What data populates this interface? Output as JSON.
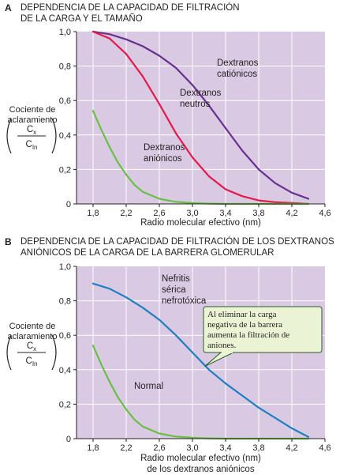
{
  "chart_data": [
    {
      "type": "line",
      "panel_letter": "A",
      "title_lines": [
        "DEPENDENCIA DE LA CAPACIDAD DE FILTRACIÓN",
        "DE LA CARGA Y EL TAMAÑO"
      ],
      "xlabel": "Radio molecular efectivo (nm)",
      "ylabel_lines": [
        "Cociente de",
        "aclaramiento"
      ],
      "ylabel_fraction": {
        "num_main": "C",
        "num_sub": "x",
        "den_main": "C",
        "den_sub": "In"
      },
      "xlim": [
        1.6,
        4.6
      ],
      "ylim": [
        0,
        1.0
      ],
      "x_ticks": [
        "1,8",
        "2,2",
        "2,6",
        "3,0",
        "3,4",
        "3,8",
        "4,2",
        "4,6"
      ],
      "y_ticks": [
        "0",
        "0,2",
        "0,4",
        "0,6",
        "0,8",
        "1,0"
      ],
      "grid": true,
      "background": "#d9c9e3",
      "series": [
        {
          "name": "Dextranos catiónicos",
          "label_lines": [
            "Dextranos",
            "catiónicos"
          ],
          "color": "#6a2f91",
          "x": [
            1.8,
            2.0,
            2.2,
            2.4,
            2.6,
            2.8,
            3.0,
            3.2,
            3.4,
            3.6,
            3.8,
            4.0,
            4.2,
            4.4
          ],
          "y": [
            1.0,
            0.985,
            0.955,
            0.915,
            0.86,
            0.79,
            0.69,
            0.57,
            0.44,
            0.31,
            0.2,
            0.12,
            0.065,
            0.03
          ]
        },
        {
          "name": "Dextranos neutros",
          "label_lines": [
            "Dextranos",
            "neutros"
          ],
          "color": "#e5194a",
          "x": [
            1.8,
            2.0,
            2.2,
            2.4,
            2.6,
            2.8,
            3.0,
            3.2,
            3.4,
            3.6,
            3.8,
            4.0,
            4.2,
            4.4
          ],
          "y": [
            1.0,
            0.96,
            0.87,
            0.74,
            0.58,
            0.41,
            0.27,
            0.16,
            0.085,
            0.045,
            0.02,
            0.01,
            0.005,
            0.0
          ]
        },
        {
          "name": "Dextranos aniónicos",
          "label_lines": [
            "Dextranos",
            "aniónicos"
          ],
          "color": "#6abf45",
          "x": [
            1.8,
            1.9,
            2.0,
            2.1,
            2.2,
            2.3,
            2.4,
            2.6,
            2.8,
            3.0,
            3.2,
            3.4,
            3.8,
            4.4
          ],
          "y": [
            0.54,
            0.43,
            0.33,
            0.24,
            0.17,
            0.11,
            0.07,
            0.03,
            0.012,
            0.005,
            0.002,
            0.0,
            0.0,
            0.0
          ]
        }
      ]
    },
    {
      "type": "line",
      "panel_letter": "B",
      "title_lines": [
        "DEPENDENCIA DE LA CAPACIDAD DE FILTRACIÓN DE LOS DEXTRANOS",
        "ANIÓNICOS DE LA CARGA DE LA BARRERA GLOMERULAR"
      ],
      "xlabel_lines": [
        "Radio molecular efectivo (nm)",
        "de los dextranos aniónicos"
      ],
      "ylabel_lines": [
        "Cociente de",
        "aclaramiento"
      ],
      "ylabel_fraction": {
        "num_main": "C",
        "num_sub": "x",
        "den_main": "C",
        "den_sub": "In"
      },
      "xlim": [
        1.6,
        4.6
      ],
      "ylim": [
        0,
        1.0
      ],
      "x_ticks": [
        "1,8",
        "2,2",
        "2,6",
        "3,0",
        "3,4",
        "3,8",
        "4,2",
        "4,6"
      ],
      "y_ticks": [
        "0",
        "0,2",
        "0,4",
        "0,6",
        "0,8",
        "1,0"
      ],
      "grid": true,
      "background": "#d9c9e3",
      "series": [
        {
          "name": "Nefritis sérica nefrotóxica",
          "label_lines": [
            "Nefritis",
            "sérica",
            "nefrotóxica"
          ],
          "color": "#1f7fc4",
          "x": [
            1.8,
            2.0,
            2.2,
            2.4,
            2.6,
            2.8,
            3.0,
            3.2,
            3.4,
            3.6,
            3.8,
            4.0,
            4.2,
            4.4
          ],
          "y": [
            0.9,
            0.87,
            0.82,
            0.76,
            0.69,
            0.6,
            0.5,
            0.4,
            0.32,
            0.25,
            0.18,
            0.12,
            0.06,
            0.01
          ]
        },
        {
          "name": "Normal",
          "label_lines": [
            "Normal"
          ],
          "color": "#6abf45",
          "x": [
            1.8,
            1.9,
            2.0,
            2.1,
            2.2,
            2.3,
            2.4,
            2.6,
            2.8,
            3.0,
            3.2,
            3.4,
            3.8,
            4.4
          ],
          "y": [
            0.54,
            0.43,
            0.33,
            0.24,
            0.17,
            0.11,
            0.07,
            0.03,
            0.012,
            0.005,
            0.002,
            0.0,
            0.0,
            0.0
          ]
        }
      ],
      "annotation": {
        "lines": [
          "Al eliminar la carga",
          "negativa de la barrera",
          "aumenta la filtración de",
          "aniones."
        ],
        "points_to": {
          "x": 3.15,
          "y": 0.42
        },
        "background": "#eaf3d4",
        "border": "#2b5a2b"
      }
    }
  ]
}
